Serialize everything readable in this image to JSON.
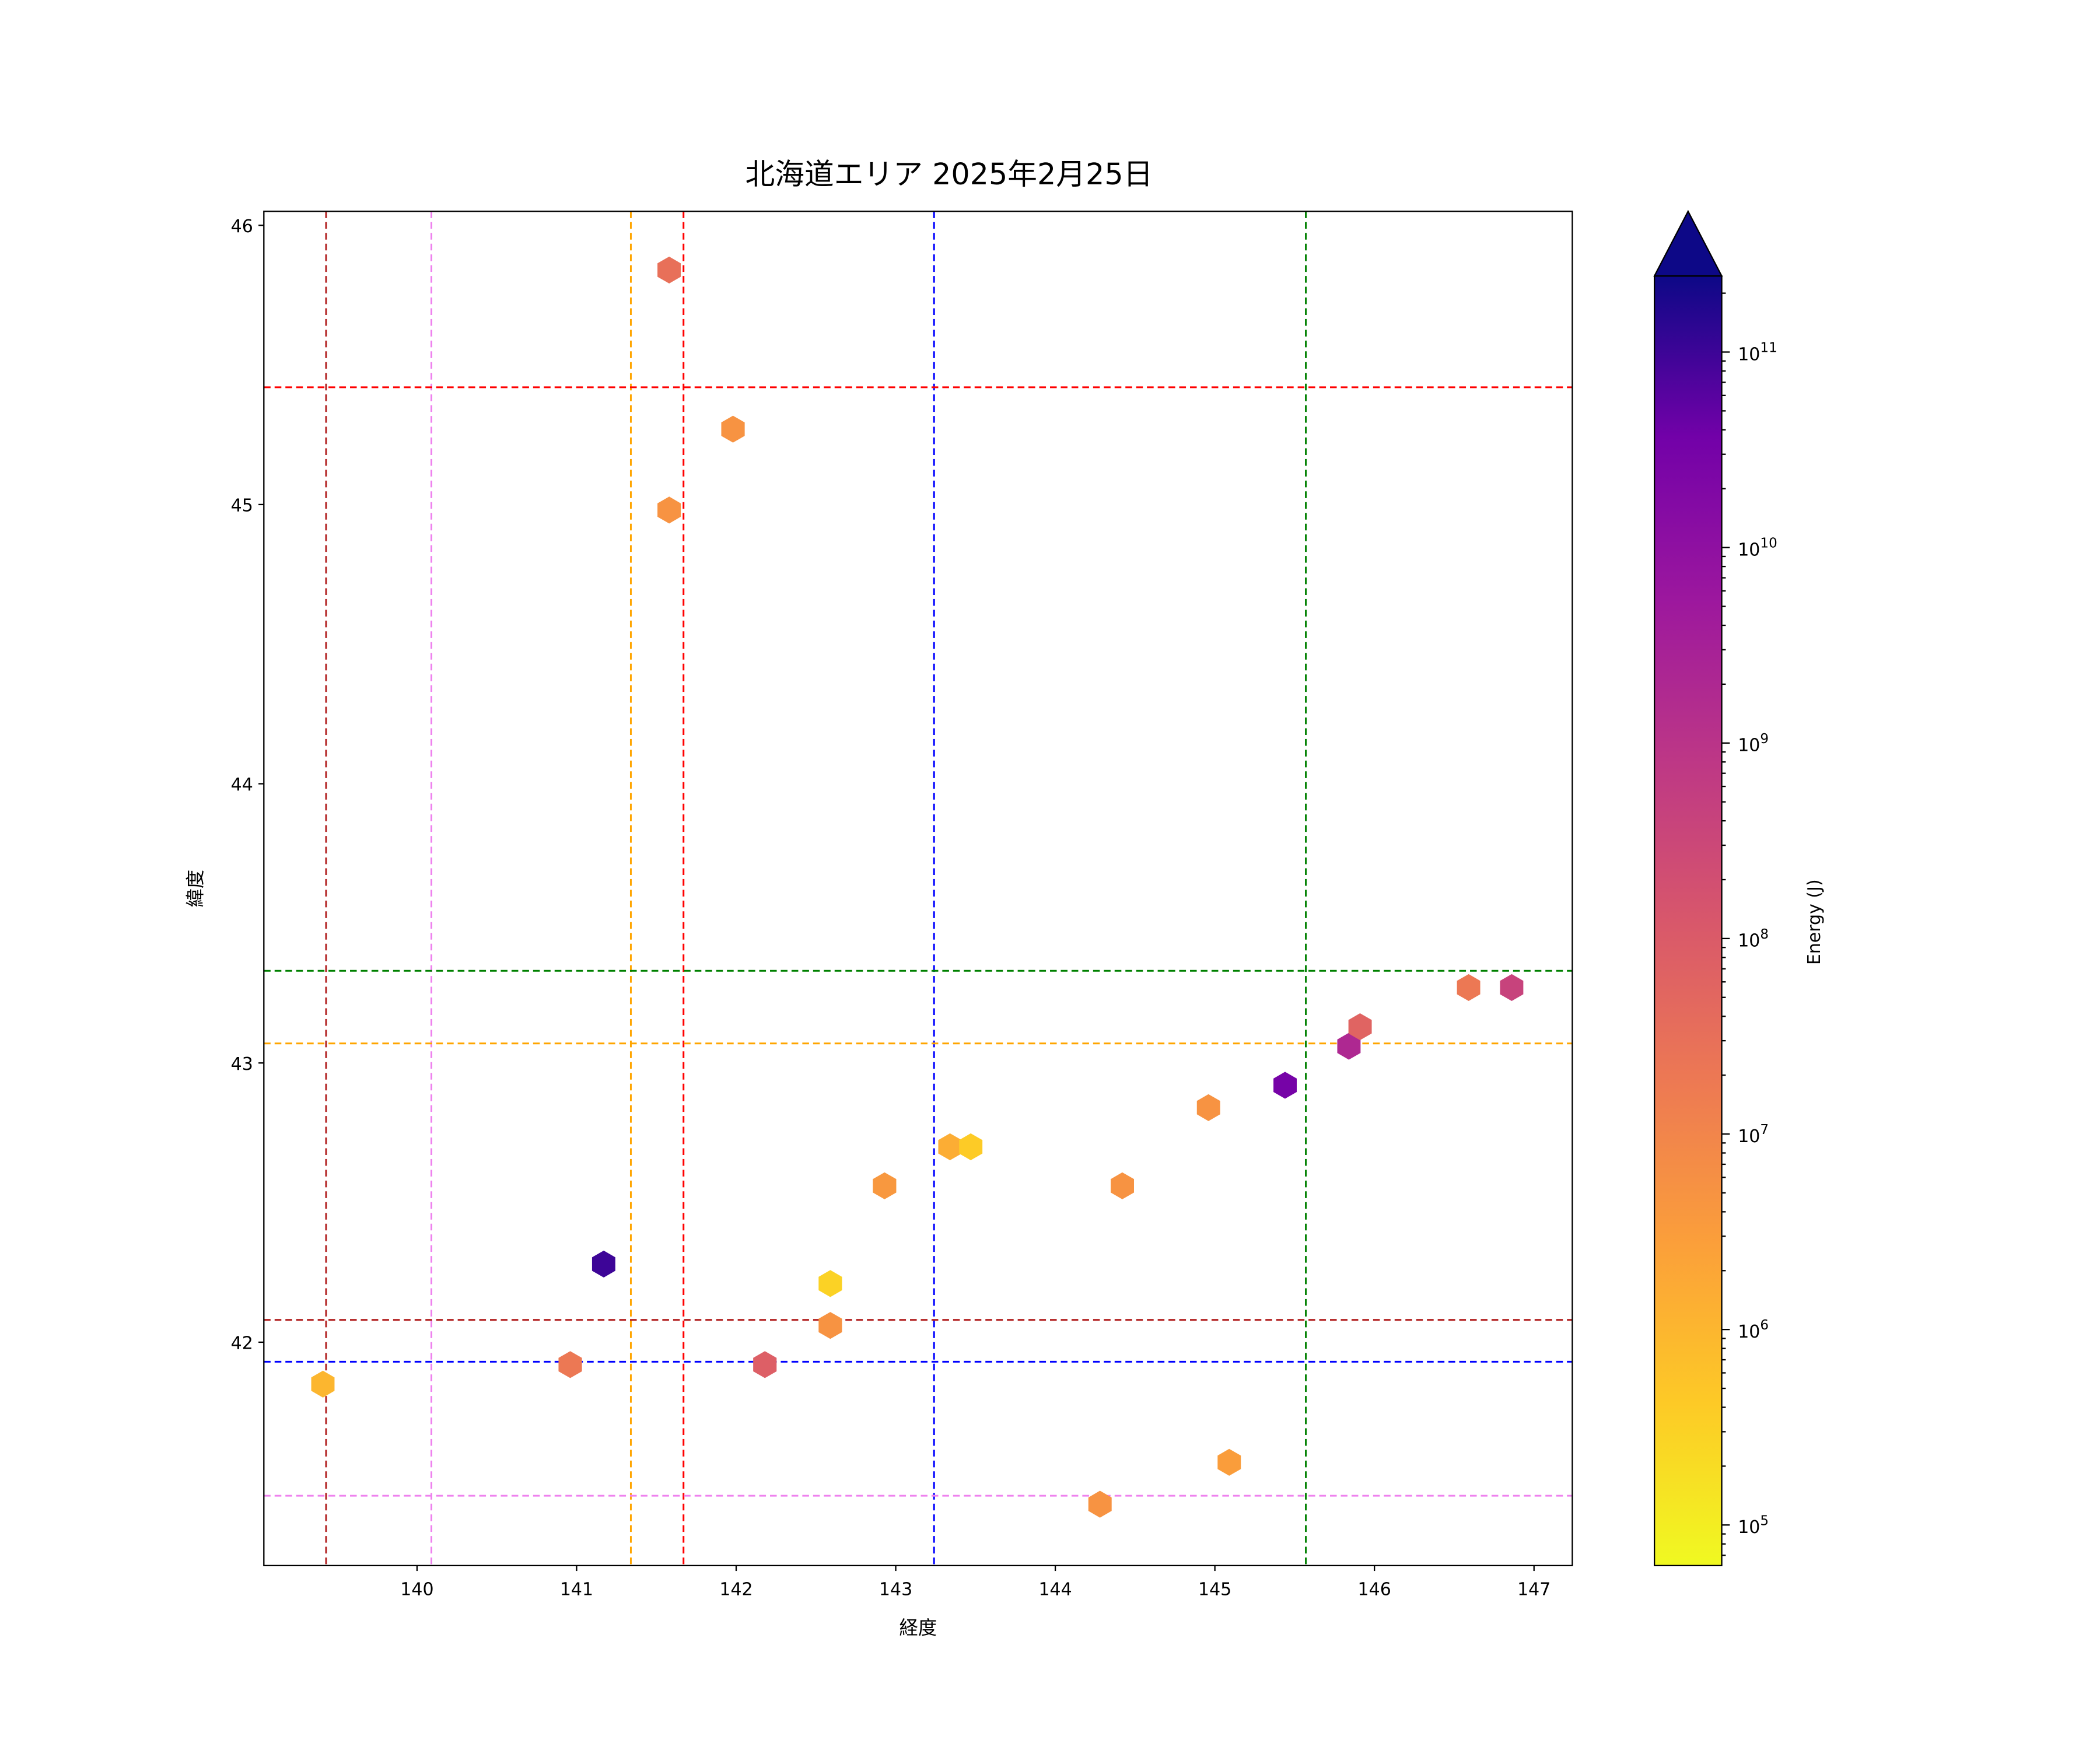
{
  "chart_data": {
    "type": "scatter",
    "marker": "hexagon",
    "title": "北海道エリア 2025年2月25日",
    "xlabel": "経度",
    "ylabel": "緯度",
    "xlim": [
      139.04,
      147.24
    ],
    "ylim": [
      41.2,
      46.05
    ],
    "xticks": [
      140,
      141,
      142,
      143,
      144,
      145,
      146,
      147
    ],
    "yticks": [
      42,
      43,
      44,
      45,
      46
    ],
    "grid": false,
    "colorbar": {
      "label": "Energy (J)",
      "scale": "log",
      "colormap": "plasma",
      "range": [
        62000,
        245000000000.0
      ],
      "extend": "max",
      "ticks": [
        {
          "exp": 5,
          "label_base": "10",
          "label_exp": "5"
        },
        {
          "exp": 6,
          "label_base": "10",
          "label_exp": "6"
        },
        {
          "exp": 7,
          "label_base": "10",
          "label_exp": "7"
        },
        {
          "exp": 8,
          "label_base": "10",
          "label_exp": "8"
        },
        {
          "exp": 9,
          "label_base": "10",
          "label_exp": "9"
        },
        {
          "exp": 10,
          "label_base": "10",
          "label_exp": "10"
        },
        {
          "exp": 11,
          "label_base": "10",
          "label_exp": "11"
        }
      ]
    },
    "points": [
      {
        "lon": 141.58,
        "lat": 45.84,
        "energy": 30000000.0
      },
      {
        "lon": 141.98,
        "lat": 45.27,
        "energy": 5000000.0
      },
      {
        "lon": 141.58,
        "lat": 44.98,
        "energy": 5000000.0
      },
      {
        "lon": 141.17,
        "lat": 42.28,
        "energy": 100000000000.0
      },
      {
        "lon": 140.96,
        "lat": 41.92,
        "energy": 20000000.0
      },
      {
        "lon": 139.41,
        "lat": 41.85,
        "energy": 1000000.0
      },
      {
        "lon": 142.18,
        "lat": 41.92,
        "energy": 80000000.0
      },
      {
        "lon": 142.59,
        "lat": 42.21,
        "energy": 300000.0
      },
      {
        "lon": 142.59,
        "lat": 42.06,
        "energy": 5000000.0
      },
      {
        "lon": 142.93,
        "lat": 42.56,
        "energy": 4000000.0
      },
      {
        "lon": 143.34,
        "lat": 42.7,
        "energy": 1500000.0
      },
      {
        "lon": 143.47,
        "lat": 42.7,
        "energy": 400000.0
      },
      {
        "lon": 144.42,
        "lat": 42.56,
        "energy": 5000000.0
      },
      {
        "lon": 144.28,
        "lat": 41.42,
        "energy": 5000000.0
      },
      {
        "lon": 144.96,
        "lat": 42.84,
        "energy": 5000000.0
      },
      {
        "lon": 145.09,
        "lat": 41.57,
        "energy": 3000000.0
      },
      {
        "lon": 145.44,
        "lat": 42.92,
        "energy": 30000000000.0
      },
      {
        "lon": 145.84,
        "lat": 43.06,
        "energy": 2000000000.0
      },
      {
        "lon": 145.91,
        "lat": 43.13,
        "energy": 60000000.0
      },
      {
        "lon": 146.59,
        "lat": 43.27,
        "energy": 20000000.0
      },
      {
        "lon": 146.86,
        "lat": 43.27,
        "energy": 400000000.0
      }
    ],
    "vlines": [
      {
        "lon": 139.43,
        "color": "#b22222"
      },
      {
        "lon": 140.09,
        "color": "#ee82ee"
      },
      {
        "lon": 141.34,
        "color": "#ffa500"
      },
      {
        "lon": 141.67,
        "color": "#ff0000"
      },
      {
        "lon": 143.24,
        "color": "#0000ff"
      },
      {
        "lon": 145.57,
        "color": "#008000"
      }
    ],
    "hlines": [
      {
        "lat": 45.42,
        "color": "#ff0000"
      },
      {
        "lat": 43.33,
        "color": "#008000"
      },
      {
        "lat": 43.07,
        "color": "#ffa500"
      },
      {
        "lat": 42.08,
        "color": "#b22222"
      },
      {
        "lat": 41.93,
        "color": "#0000ff"
      },
      {
        "lat": 41.45,
        "color": "#ee82ee"
      }
    ]
  }
}
